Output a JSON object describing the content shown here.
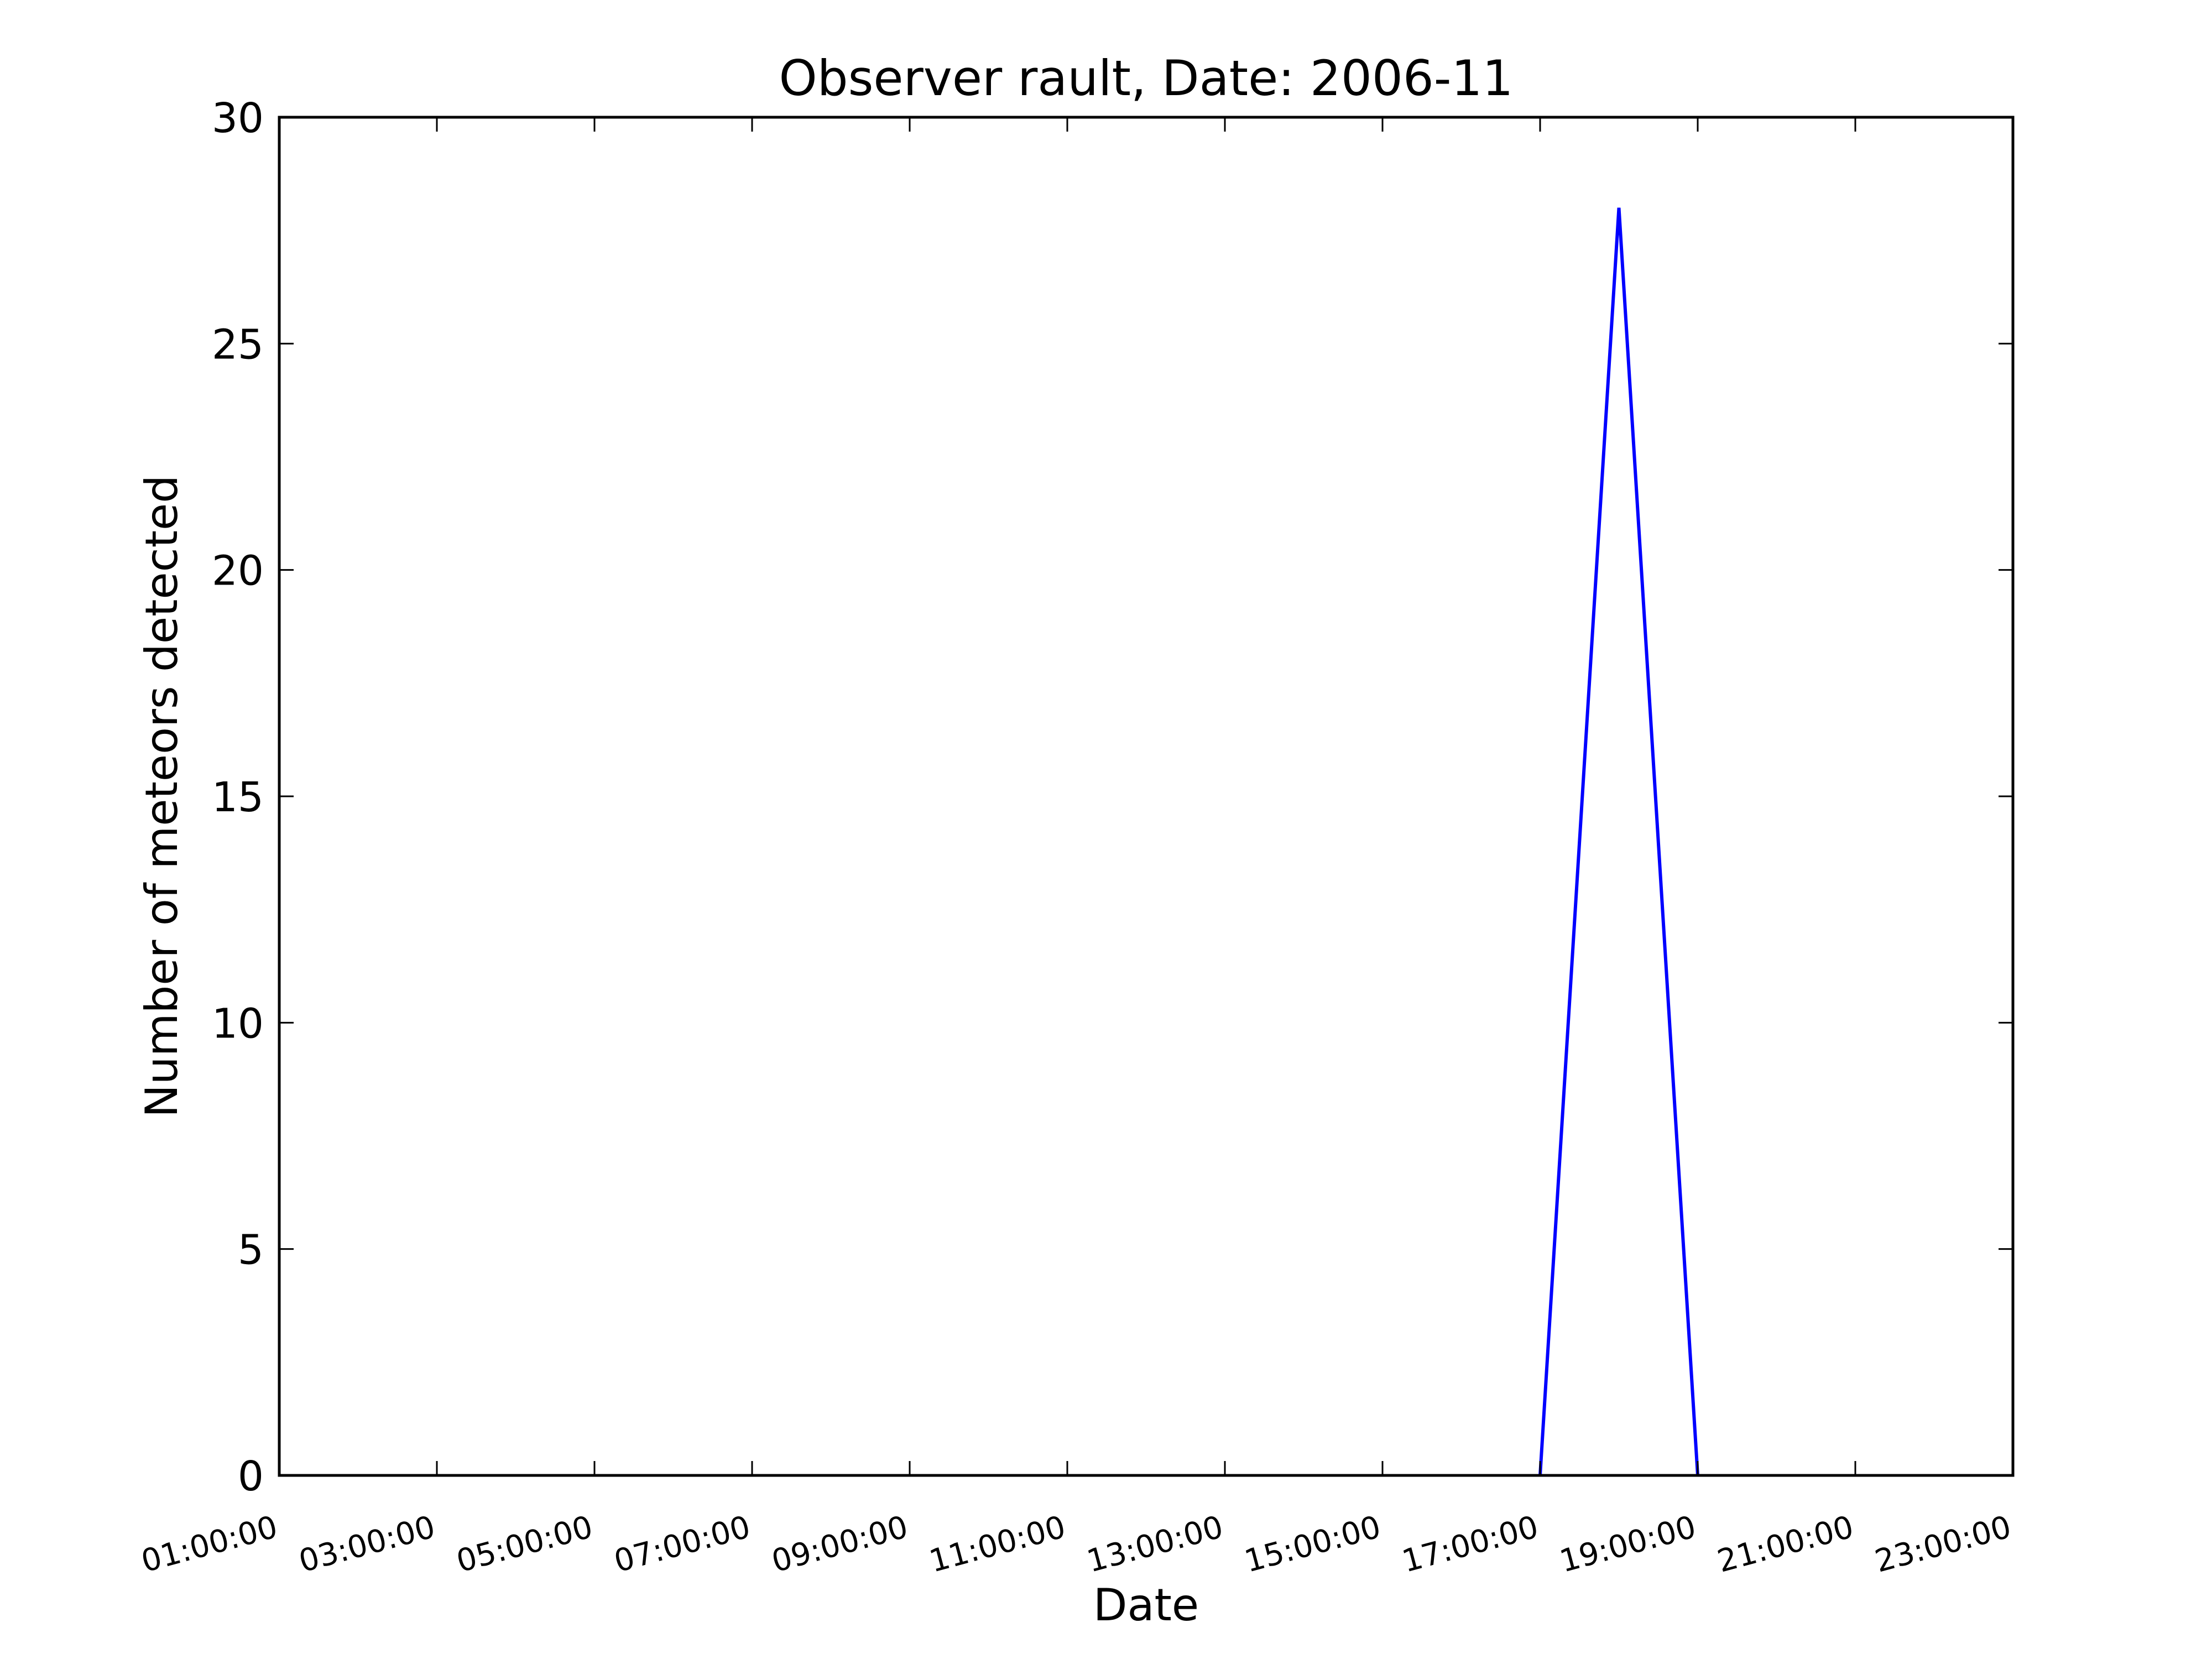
{
  "chart_data": {
    "type": "line",
    "title": "Observer rault, Date: 2006-11",
    "xlabel": "Date",
    "ylabel": "Number of meteors detected",
    "xlim": [
      "01:00:00",
      "23:00:00"
    ],
    "ylim": [
      0,
      30
    ],
    "x_ticks": [
      "01:00:00",
      "03:00:00",
      "05:00:00",
      "07:00:00",
      "09:00:00",
      "11:00:00",
      "13:00:00",
      "15:00:00",
      "17:00:00",
      "19:00:00",
      "21:00:00",
      "23:00:00"
    ],
    "y_ticks": [
      0,
      5,
      10,
      15,
      20,
      25,
      30
    ],
    "grid": false,
    "legend": "none",
    "series": [
      {
        "color": "#0000ff",
        "points": [
          {
            "x": "17:00:00",
            "y": 0
          },
          {
            "x": "18:00:00",
            "y": 28
          },
          {
            "x": "19:00:00",
            "y": 0
          }
        ]
      }
    ]
  }
}
